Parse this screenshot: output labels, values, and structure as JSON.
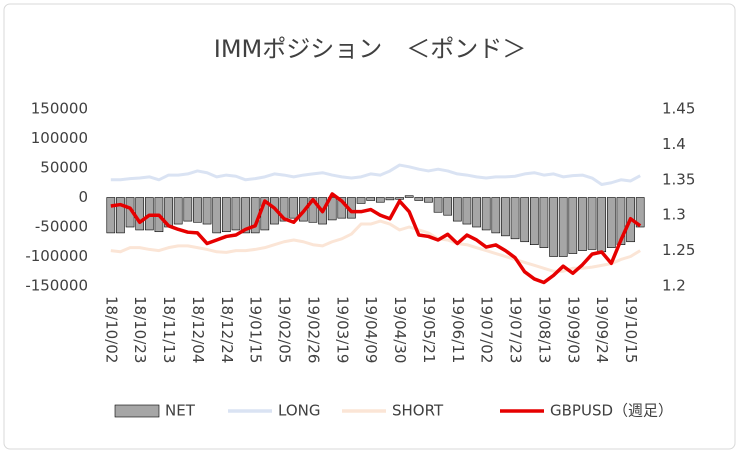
{
  "chart_data": {
    "type": "combo",
    "title": "IMMポジション　＜ポンド＞",
    "categories": [
      "18/10/02",
      null,
      null,
      "18/10/23",
      null,
      null,
      "18/11/13",
      null,
      null,
      "18/12/04",
      null,
      null,
      "18/12/24",
      null,
      null,
      "19/01/15",
      null,
      null,
      "19/02/05",
      null,
      null,
      "19/02/26",
      null,
      null,
      "19/03/19",
      null,
      null,
      "19/04/09",
      null,
      null,
      "19/04/30",
      null,
      null,
      "19/05/21",
      null,
      null,
      "19/06/11",
      null,
      null,
      "19/07/02",
      null,
      null,
      "19/07/23",
      null,
      null,
      "19/08/13",
      null,
      null,
      "19/09/03",
      null,
      null,
      "19/09/24",
      null,
      null,
      "19/10/15",
      null
    ],
    "series": [
      {
        "name": "NET",
        "type": "bar",
        "color": "#a6a6a6",
        "values": [
          -60000,
          -60000,
          -50000,
          -55000,
          -55000,
          -58000,
          -50000,
          -45000,
          -40000,
          -42000,
          -45000,
          -60000,
          -58000,
          -55000,
          -60000,
          -60000,
          -55000,
          -45000,
          -40000,
          -35000,
          -40000,
          -42000,
          -45000,
          -38000,
          -35000,
          -35000,
          -10000,
          -5000,
          -8000,
          -4000,
          -3000,
          3000,
          -5000,
          -8000,
          -25000,
          -30000,
          -40000,
          -45000,
          -50000,
          -55000,
          -60000,
          -65000,
          -70000,
          -75000,
          -80000,
          -85000,
          -100000,
          -100000,
          -95000,
          -90000,
          -88000,
          -92000,
          -85000,
          -80000,
          -75000,
          -50000
        ]
      },
      {
        "name": "LONG",
        "type": "line",
        "color": "#dae3f3",
        "values": [
          30000,
          30000,
          32000,
          33000,
          35000,
          30000,
          38000,
          38000,
          40000,
          45000,
          42000,
          35000,
          38000,
          36000,
          30000,
          32000,
          35000,
          40000,
          38000,
          35000,
          38000,
          40000,
          42000,
          38000,
          35000,
          33000,
          35000,
          40000,
          38000,
          45000,
          55000,
          52000,
          48000,
          45000,
          48000,
          45000,
          40000,
          38000,
          35000,
          33000,
          35000,
          35000,
          36000,
          40000,
          42000,
          38000,
          40000,
          35000,
          37000,
          38000,
          33000,
          22000,
          25000,
          30000,
          28000,
          37000
        ]
      },
      {
        "name": "SHORT",
        "type": "line",
        "color": "#fbe5d6",
        "values": [
          -90000,
          -92000,
          -85000,
          -85000,
          -88000,
          -90000,
          -85000,
          -82000,
          -82000,
          -85000,
          -88000,
          -92000,
          -93000,
          -90000,
          -90000,
          -88000,
          -85000,
          -80000,
          -75000,
          -72000,
          -75000,
          -80000,
          -82000,
          -75000,
          -70000,
          -62000,
          -45000,
          -45000,
          -40000,
          -45000,
          -55000,
          -50000,
          -55000,
          -60000,
          -70000,
          -72000,
          -78000,
          -80000,
          -85000,
          -90000,
          -95000,
          -100000,
          -105000,
          -110000,
          -115000,
          -120000,
          -125000,
          -125000,
          -120000,
          -120000,
          -118000,
          -115000,
          -112000,
          -105000,
          -100000,
          -90000
        ]
      },
      {
        "name": "GBPUSD（週足）",
        "type": "line",
        "axis": "y2",
        "color": "#e60000",
        "values": [
          1.313,
          1.315,
          1.31,
          1.29,
          1.3,
          1.3,
          1.285,
          1.28,
          1.276,
          1.275,
          1.26,
          1.265,
          1.27,
          1.272,
          1.28,
          1.285,
          1.32,
          1.31,
          1.295,
          1.29,
          1.305,
          1.322,
          1.305,
          1.33,
          1.32,
          1.305,
          1.305,
          1.308,
          1.3,
          1.295,
          1.32,
          1.305,
          1.272,
          1.27,
          1.265,
          1.273,
          1.26,
          1.272,
          1.265,
          1.255,
          1.258,
          1.25,
          1.24,
          1.22,
          1.21,
          1.205,
          1.215,
          1.228,
          1.218,
          1.23,
          1.245,
          1.248,
          1.232,
          1.265,
          1.295,
          1.285
        ]
      }
    ],
    "ylim": [
      -150000,
      150000
    ],
    "yticks": [
      -150000,
      -100000,
      -50000,
      0,
      50000,
      100000,
      150000
    ],
    "y2lim": [
      1.2,
      1.45
    ],
    "y2ticks": [
      1.2,
      1.25,
      1.3,
      1.35,
      1.4,
      1.45
    ],
    "grid": false,
    "legend": "bottom"
  }
}
